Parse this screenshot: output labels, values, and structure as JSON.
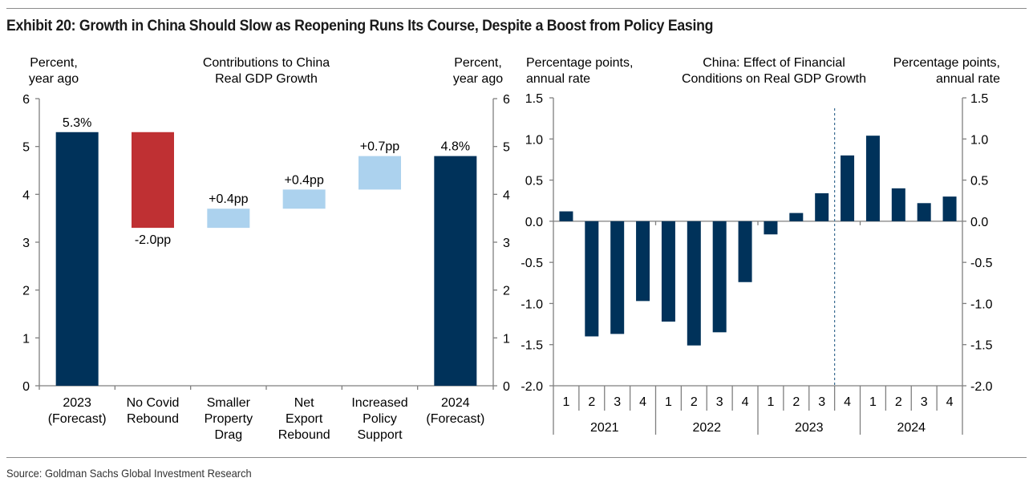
{
  "title": "Exhibit 20: Growth in China Should Slow as Reopening Runs Its Course, Despite a Boost from Policy Easing",
  "source": "Source: Goldman Sachs Global Investment Research",
  "colors": {
    "dark_navy": "#00325a",
    "red": "#bf3033",
    "light_blue": "#acd2ee",
    "axis": "#7f7f7f",
    "divider": "#3a6b91"
  },
  "chart_data": [
    {
      "type": "bar",
      "subtype": "waterfall",
      "title": [
        "Contributions to China",
        "Real GDP Growth"
      ],
      "ylabel_left": [
        "Percent,",
        "year ago"
      ],
      "ylabel_right": [
        "Percent,",
        "year ago"
      ],
      "ylim": [
        0,
        6
      ],
      "yticks": [
        "0",
        "1",
        "2",
        "3",
        "4",
        "5",
        "6"
      ],
      "categories": [
        [
          "2023",
          "(Forecast)"
        ],
        [
          "No Covid",
          "Rebound"
        ],
        [
          "Smaller",
          "Property",
          "Drag"
        ],
        [
          "Net",
          "Export",
          "Rebound"
        ],
        [
          "Increased",
          "Policy",
          "Support"
        ],
        [
          "2024",
          "(Forecast)"
        ]
      ],
      "bars": [
        {
          "kind": "total",
          "start": 0,
          "end": 5.3,
          "label": "5.3%",
          "color": "dark_navy"
        },
        {
          "kind": "decrease",
          "start": 5.3,
          "end": 3.3,
          "label": "-2.0pp",
          "color": "red"
        },
        {
          "kind": "increase",
          "start": 3.3,
          "end": 3.7,
          "label": "+0.4pp",
          "color": "light_blue"
        },
        {
          "kind": "increase",
          "start": 3.7,
          "end": 4.1,
          "label": "+0.4pp",
          "color": "light_blue"
        },
        {
          "kind": "increase",
          "start": 4.1,
          "end": 4.8,
          "label": "+0.7pp",
          "color": "light_blue"
        },
        {
          "kind": "total",
          "start": 0,
          "end": 4.8,
          "label": "4.8%",
          "color": "dark_navy"
        }
      ],
      "grid": false
    },
    {
      "type": "bar",
      "title": [
        "China: Effect of Financial",
        "Conditions on Real GDP Growth"
      ],
      "ylabel_left": [
        "Percentage points,",
        "annual rate"
      ],
      "ylabel_right": [
        "Percentage points,",
        "annual rate"
      ],
      "ylim": [
        -2.0,
        1.5
      ],
      "yticks": [
        "-2.0",
        "-1.5",
        "-1.0",
        "-0.5",
        "0.0",
        "0.5",
        "1.0",
        "1.5"
      ],
      "years": [
        "2021",
        "2022",
        "2023",
        "2024"
      ],
      "quarters": [
        "1",
        "2",
        "3",
        "4"
      ],
      "values": [
        0.12,
        -1.4,
        -1.37,
        -0.97,
        -1.22,
        -1.51,
        -1.35,
        -0.74,
        -0.16,
        0.1,
        0.34,
        0.8,
        1.04,
        0.4,
        0.22,
        0.3
      ],
      "forecast_divider_after_index": 10,
      "grid": false
    }
  ]
}
